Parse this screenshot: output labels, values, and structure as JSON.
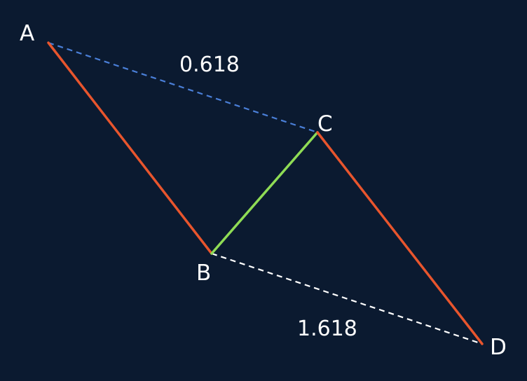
{
  "diagram": {
    "background": "#0b1a30",
    "points": {
      "A": {
        "label": "A"
      },
      "B": {
        "label": "B"
      },
      "C": {
        "label": "C"
      },
      "D": {
        "label": "D"
      }
    },
    "ratios": {
      "ac": "0.618",
      "bd": "1.618"
    },
    "colors": {
      "impulse_leg": "#e8552d",
      "corrective_leg": "#8fdc55",
      "ac_ratio_line": "#4a7fd8",
      "bd_ratio_line": "#ffffff",
      "text": "#ffffff"
    }
  }
}
